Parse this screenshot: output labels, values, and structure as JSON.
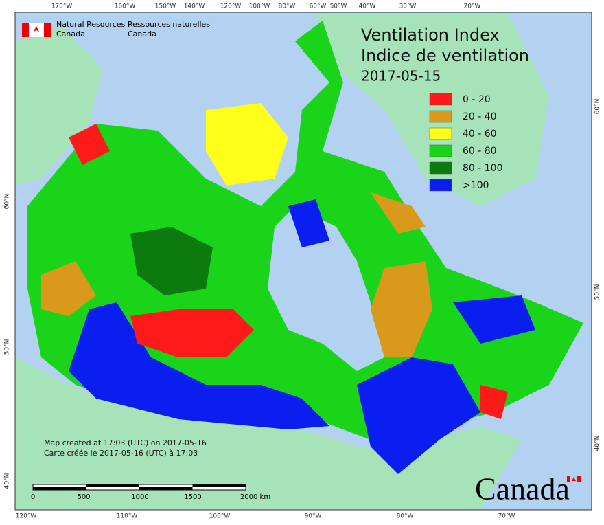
{
  "agency": {
    "english": [
      "Natural Resources",
      "Canada"
    ],
    "french": [
      "Ressources naturelles",
      "Canada"
    ]
  },
  "title": [
    "Ventilation Index",
    "Indice de ventilation",
    "2017-05-15"
  ],
  "legend": [
    {
      "label": "0 - 20",
      "color": "#ff1a1a"
    },
    {
      "label": "20 - 40",
      "color": "#d99a1c"
    },
    {
      "label": "40 - 60",
      "color": "#ffff1a"
    },
    {
      "label": "60 - 80",
      "color": "#1ad41a"
    },
    {
      "label": "80 - 100",
      "color": "#0c7a0c"
    },
    {
      "label": ">100",
      "color": "#0a1ef0"
    }
  ],
  "created": [
    "Map created at 17:03 (UTC) on 2017-05-16",
    "Carte créée le 2017-05-16 (UTC) à 17:03"
  ],
  "scale_bar": [
    "0",
    "500",
    "1000",
    "1500",
    "2000  km"
  ],
  "wordmark": "Canada",
  "graticule": {
    "top": [
      "170°W",
      "160°W",
      "150°W",
      "140°W",
      "120°W",
      "100°W",
      "80°W",
      "60°W",
      "50°W",
      "40°W",
      "30°W",
      "20°W"
    ],
    "bottom": [
      "120°W",
      "110°W",
      "100°W",
      "90°W",
      "80°W",
      "70°W"
    ],
    "left": [
      "60°N",
      "50°N",
      "40°N"
    ],
    "right": [
      "60°N",
      "50°N",
      "40°N"
    ]
  }
}
